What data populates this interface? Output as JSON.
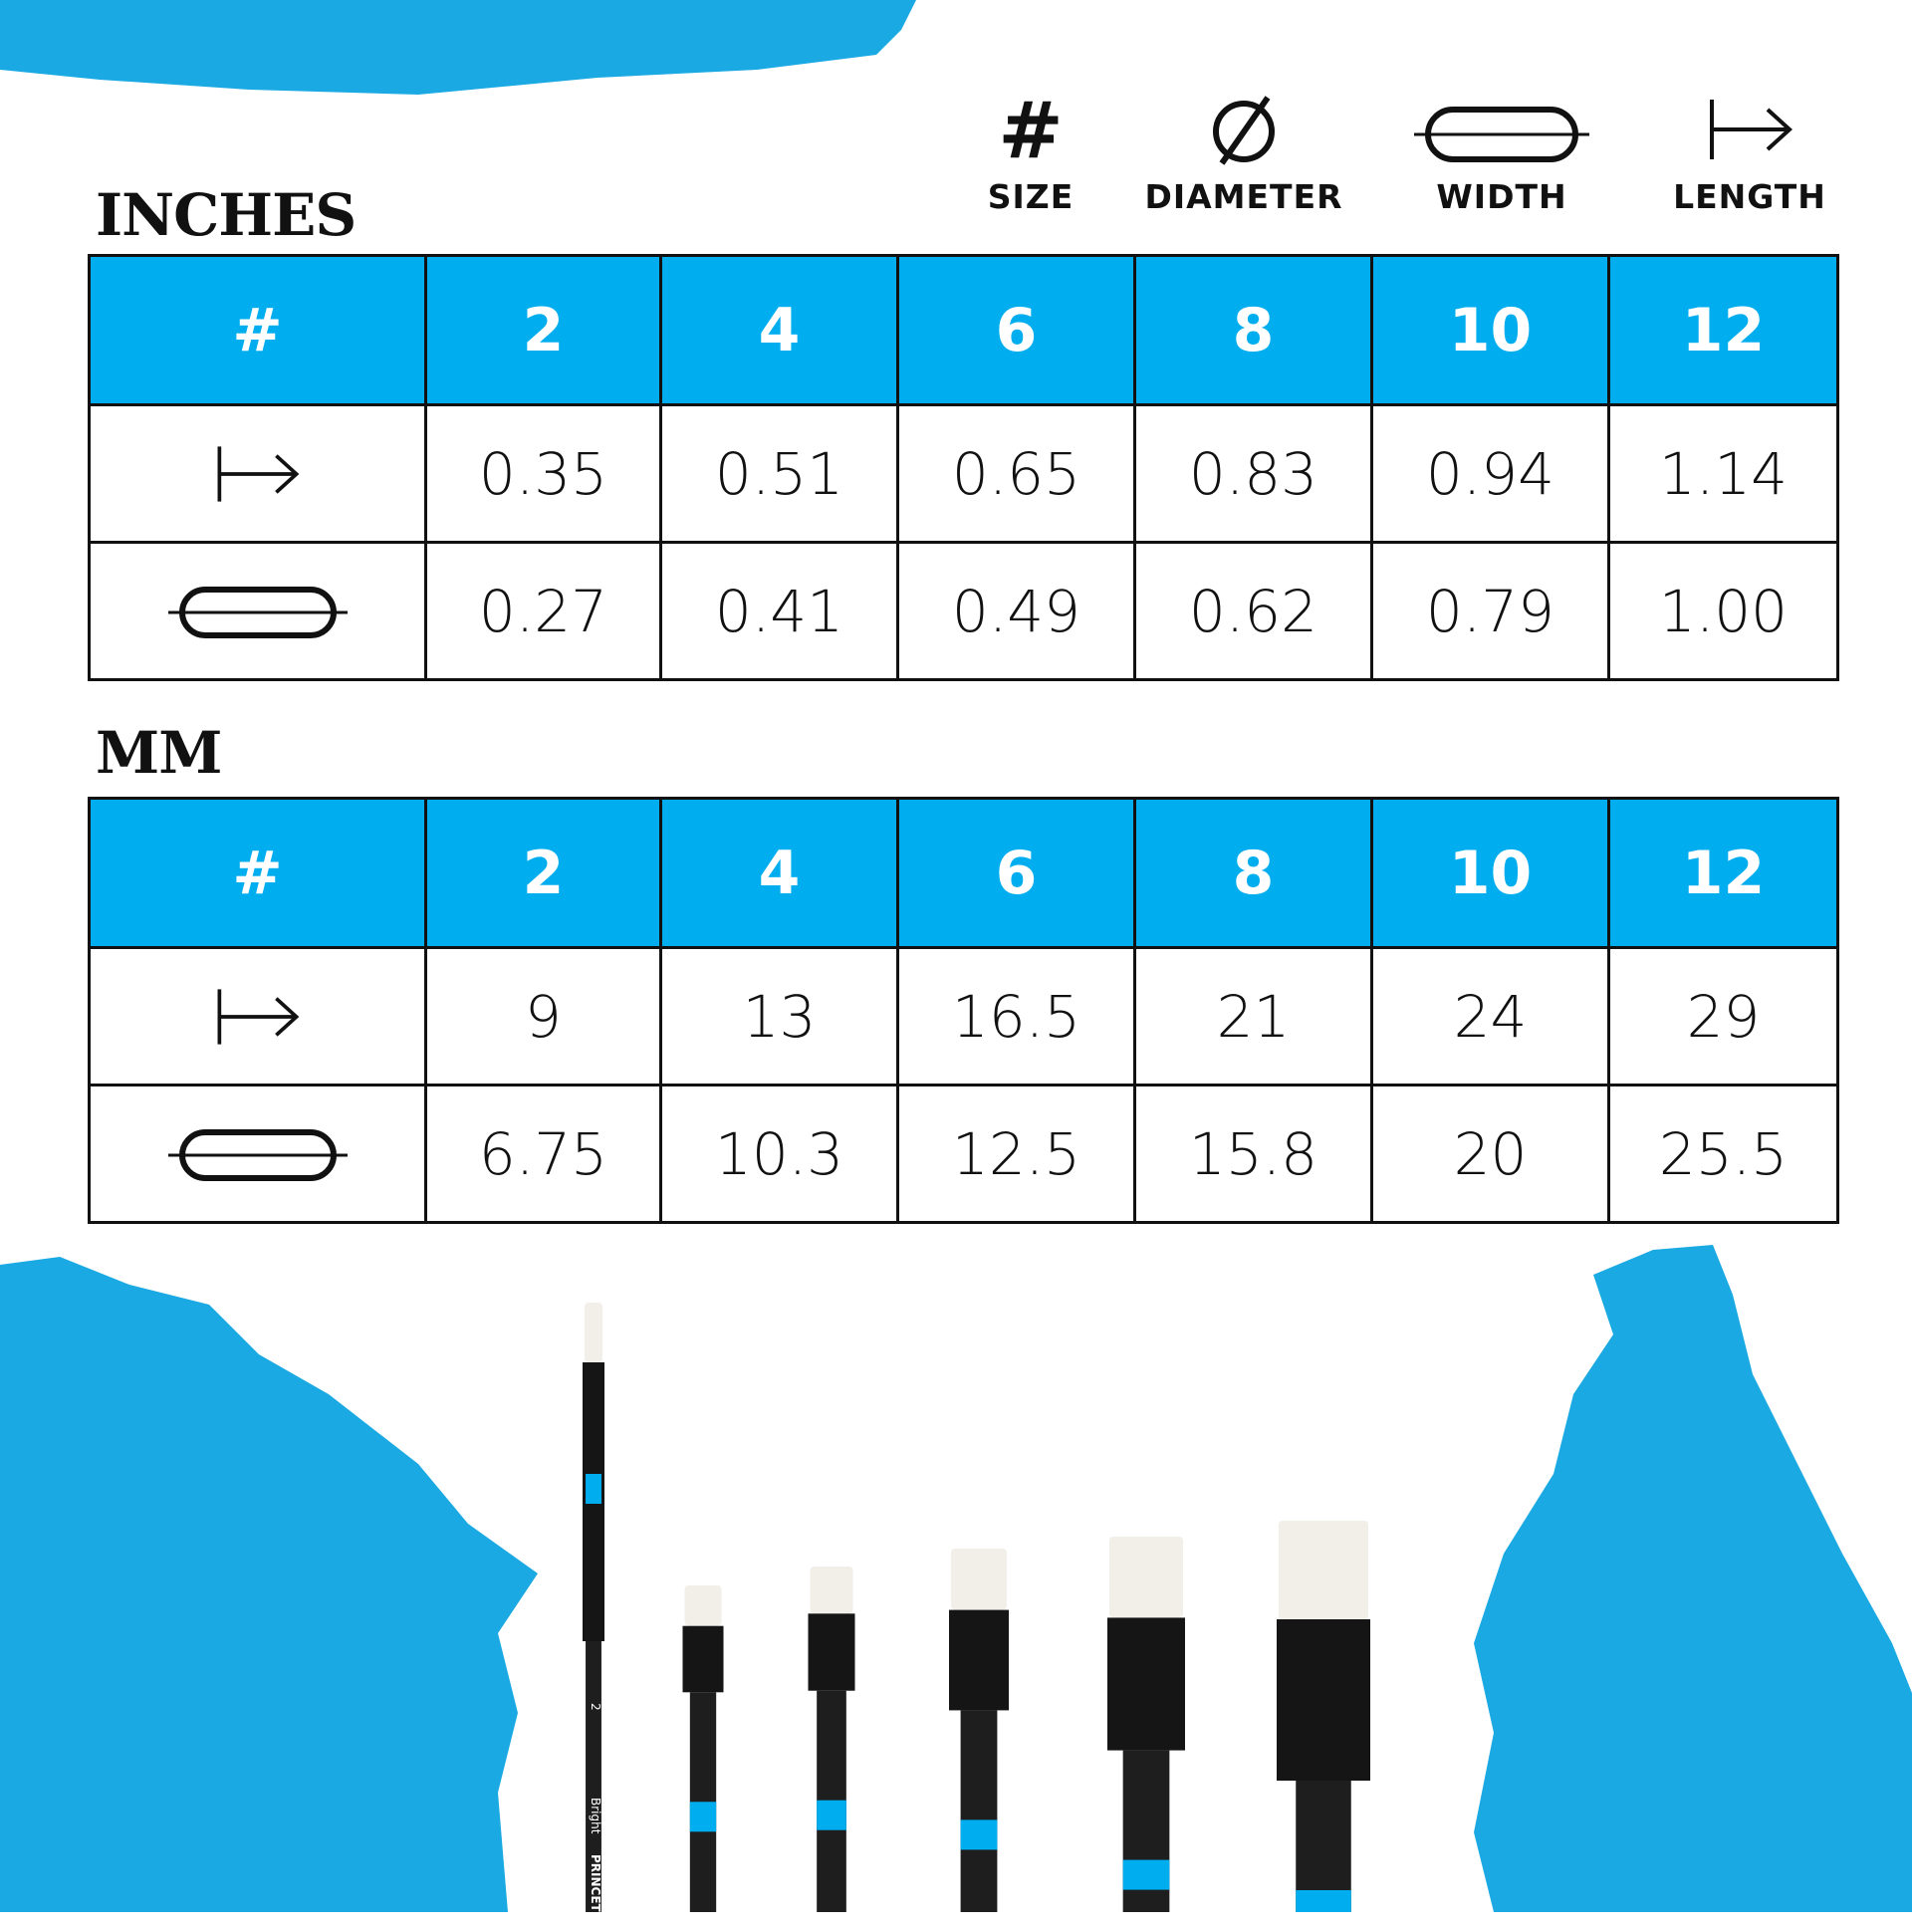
{
  "accent_color": "#00adef",
  "legend": [
    {
      "icon": "hash-icon",
      "label": "SIZE"
    },
    {
      "icon": "diameter-icon",
      "label": "DIAMETER"
    },
    {
      "icon": "width-icon",
      "label": "WIDTH"
    },
    {
      "icon": "length-icon",
      "label": "LENGTH"
    }
  ],
  "inches": {
    "title": "INCHES",
    "header_symbol": "#",
    "sizes": [
      "2",
      "4",
      "6",
      "8",
      "10",
      "12"
    ],
    "rows": [
      {
        "icon": "length-icon",
        "values": [
          "0.35",
          "0.51",
          "0.65",
          "0.83",
          "0.94",
          "1.14"
        ]
      },
      {
        "icon": "width-icon",
        "values": [
          "0.27",
          "0.41",
          "0.49",
          "0.62",
          "0.79",
          "1.00"
        ]
      }
    ]
  },
  "mm": {
    "title": "MM",
    "header_symbol": "#",
    "sizes": [
      "2",
      "4",
      "6",
      "8",
      "10",
      "12"
    ],
    "rows": [
      {
        "icon": "length-icon",
        "values": [
          "9",
          "13",
          "16.5",
          "21",
          "24",
          "29"
        ]
      },
      {
        "icon": "width-icon",
        "values": [
          "6.75",
          "10.3",
          "12.5",
          "15.8",
          "20",
          "25.5"
        ]
      }
    ]
  },
  "brush_labels": {
    "size": "2",
    "type": "Bright",
    "brand": "PRINCETON"
  }
}
